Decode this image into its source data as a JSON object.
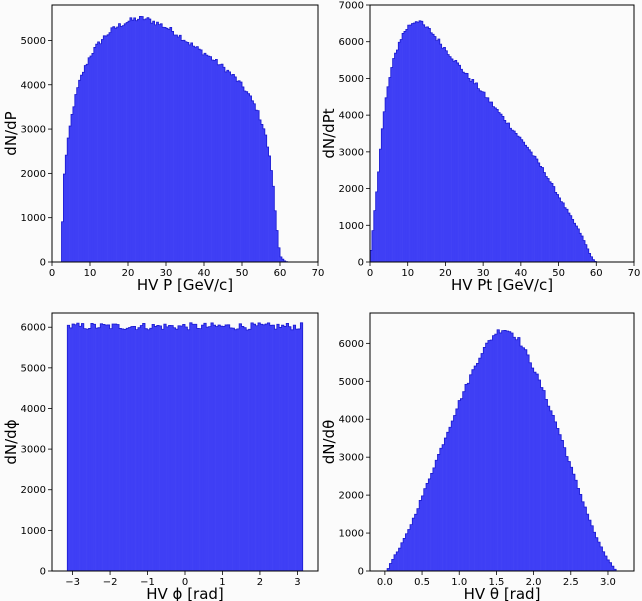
{
  "chart_data": [
    {
      "type": "bar",
      "xlabel": "HV P [GeV/c]",
      "ylabel": "dN/dP",
      "xlim": [
        0,
        70
      ],
      "ylim": [
        0,
        5800
      ],
      "xticks": [
        "0",
        "10",
        "20",
        "30",
        "40",
        "50",
        "60",
        "70"
      ],
      "yticks": [
        "0",
        "1000",
        "2000",
        "3000",
        "4000",
        "5000"
      ],
      "bin_range": [
        2.5,
        62
      ],
      "nbins": 119,
      "profile_x": [
        2.5,
        3,
        4,
        5,
        6,
        7,
        8,
        9,
        10,
        12,
        14,
        16,
        18,
        20,
        22,
        24,
        26,
        28,
        30,
        32,
        34,
        36,
        38,
        40,
        42,
        44,
        46,
        48,
        50,
        52,
        54,
        56,
        57,
        58,
        59,
        60,
        61,
        62
      ],
      "profile_y": [
        0,
        1800,
        2600,
        3200,
        3650,
        4000,
        4250,
        4450,
        4650,
        4900,
        5100,
        5250,
        5350,
        5430,
        5480,
        5500,
        5450,
        5380,
        5300,
        5200,
        5080,
        4950,
        4830,
        4720,
        4600,
        4470,
        4330,
        4180,
        3980,
        3750,
        3430,
        2950,
        2500,
        1950,
        900,
        150,
        30,
        0
      ],
      "fill": "#3f3ff5"
    },
    {
      "type": "bar",
      "xlabel": "HV Pt [GeV/c]",
      "ylabel": "dN/dPt",
      "xlim": [
        0,
        70
      ],
      "ylim": [
        0,
        7000
      ],
      "xticks": [
        "0",
        "10",
        "20",
        "30",
        "40",
        "50",
        "60",
        "70"
      ],
      "yticks": [
        "0",
        "1000",
        "2000",
        "3000",
        "4000",
        "5000",
        "6000",
        "7000"
      ],
      "bin_range": [
        0,
        60
      ],
      "nbins": 120,
      "profile_x": [
        0,
        0.5,
        1,
        2,
        3,
        4,
        5,
        6,
        7,
        8,
        9,
        10,
        11,
        12,
        13,
        14,
        16,
        18,
        20,
        22,
        24,
        26,
        28,
        30,
        32,
        34,
        36,
        38,
        40,
        42,
        44,
        46,
        48,
        50,
        52,
        54,
        56,
        58,
        59,
        60
      ],
      "profile_y": [
        0,
        600,
        1100,
        2200,
        3400,
        4300,
        4900,
        5400,
        5750,
        6050,
        6250,
        6400,
        6500,
        6560,
        6600,
        6450,
        6300,
        6050,
        5800,
        5550,
        5300,
        5050,
        4850,
        4600,
        4350,
        4100,
        3850,
        3600,
        3350,
        3100,
        2800,
        2500,
        2150,
        1800,
        1450,
        1100,
        750,
        300,
        80,
        0
      ],
      "fill": "#3f3ff5"
    },
    {
      "type": "bar",
      "xlabel": "HV ϕ [rad]",
      "ylabel": "dN/dϕ",
      "xlim": [
        -3.55,
        3.55
      ],
      "ylim": [
        0,
        6350
      ],
      "xticks": [
        "−3",
        "−2",
        "−1",
        "0",
        "1",
        "2",
        "3"
      ],
      "xtick_values": [
        -3,
        -2,
        -1,
        0,
        1,
        2,
        3
      ],
      "yticks": [
        "0",
        "1000",
        "2000",
        "3000",
        "4000",
        "5000",
        "6000"
      ],
      "bin_range": [
        -3.1416,
        3.1416
      ],
      "nbins": 100,
      "profile_x": [
        -3.1416,
        3.1416
      ],
      "profile_y": [
        6020,
        6020
      ],
      "noise_amplitude": 90,
      "fill": "#3f3ff5"
    },
    {
      "type": "bar",
      "xlabel": "HV θ [rad]",
      "ylabel": "dN/dθ",
      "xlim": [
        -0.2,
        3.35
      ],
      "ylim": [
        0,
        6800
      ],
      "xticks": [
        "0.0",
        "0.5",
        "1.0",
        "1.5",
        "2.0",
        "2.5",
        "3.0"
      ],
      "xtick_values": [
        0,
        0.5,
        1,
        1.5,
        2,
        2.5,
        3
      ],
      "yticks": [
        "0",
        "1000",
        "2000",
        "3000",
        "4000",
        "5000",
        "6000"
      ],
      "bin_range": [
        0.03,
        3.11
      ],
      "nbins": 100,
      "profile_x": [
        0.03,
        0.1,
        0.2,
        0.3,
        0.4,
        0.5,
        0.6,
        0.7,
        0.8,
        0.9,
        1.0,
        1.1,
        1.2,
        1.3,
        1.4,
        1.5,
        1.6,
        1.7,
        1.8,
        1.9,
        2.0,
        2.1,
        2.2,
        2.3,
        2.4,
        2.5,
        2.6,
        2.7,
        2.8,
        2.9,
        3.0,
        3.11
      ],
      "profile_y": [
        0,
        300,
        600,
        1000,
        1450,
        1950,
        2450,
        2950,
        3450,
        3950,
        4450,
        4900,
        5350,
        5750,
        6050,
        6300,
        6380,
        6300,
        6100,
        5750,
        5350,
        4900,
        4400,
        3900,
        3350,
        2750,
        2200,
        1650,
        1100,
        650,
        300,
        0
      ],
      "fill": "#3f3ff5"
    }
  ]
}
